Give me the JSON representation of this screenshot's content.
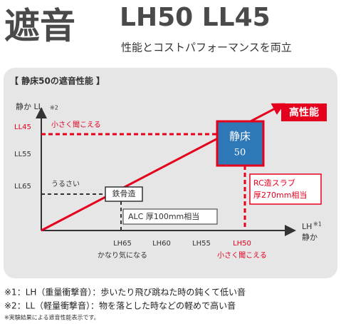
{
  "header": {
    "title": "遮音",
    "model": "LH50 LL45",
    "subtitle": "性能とコストパフォーマンスを両立"
  },
  "panel": {
    "heading": "【 静床50の遮音性能 】",
    "y_axis": {
      "label": "静か LL",
      "note": "※2",
      "ticks": [
        "LL45",
        "LL55",
        "LL65"
      ],
      "top_note": "小さく聞こえる",
      "low_note": "うるさい"
    },
    "x_axis": {
      "label": "LH",
      "note": "※1",
      "label_sub": "静か",
      "ticks": [
        "LH65",
        "LH60",
        "LH55",
        "LH50"
      ],
      "left_note": "かなり気になる",
      "right_note": "小さく聞こえる"
    },
    "badge": "高性能",
    "product": {
      "line1": "静床",
      "line2": "50"
    },
    "rc_slab": {
      "line1": "RC造スラブ",
      "line2": "厚270mm相当"
    },
    "steel": "鉄骨造",
    "alc": "ALC 厚100mm相当"
  },
  "footnotes": [
    "※1：LH（重量衝撃音）：歩いたり飛び跳ねた時の鈍くて低い音",
    "※2：LL（軽量衝撃音）：物を落とした時などの軽めで高い音",
    "※実験結果による遮音性能表示です。"
  ]
}
